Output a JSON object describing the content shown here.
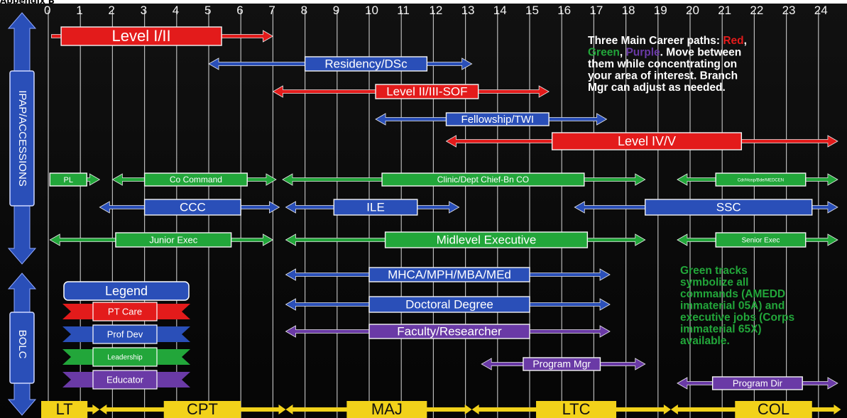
{
  "top_title": "Appendix B",
  "colors": {
    "red": "#e31b1b",
    "blue": "#2a4fb8",
    "green": "#22a63a",
    "purple": "#6a3aa6",
    "yellow": "#f2d21a",
    "white": "#ffffff",
    "black": "#000000"
  },
  "years": [
    "0",
    "1",
    "2",
    "3",
    "4",
    "5",
    "6",
    "7",
    "8",
    "9",
    "10",
    "11",
    "12",
    "13",
    "14",
    "15",
    "16",
    "17",
    "18",
    "19",
    "20",
    "21",
    "22",
    "23",
    "24"
  ],
  "side_labels": {
    "upper": "IPAP/ACCESSIONS",
    "lower": "BOLC"
  },
  "tracks": [
    {
      "id": "level-1-2",
      "label": "Level I/II",
      "color": "red",
      "start": 0.1,
      "end": 7.0,
      "label_start": 0.4,
      "label_end": 5.4,
      "two_way": false
    },
    {
      "id": "residency-dsc",
      "label": "Residency/DSc",
      "color": "blue",
      "start": 5.0,
      "end": 13.2,
      "label_start": 8.0,
      "label_end": 11.8,
      "two_way": true
    },
    {
      "id": "level-2-3-sof",
      "label": "Level II/III-SOF",
      "color": "red",
      "start": 7.0,
      "end": 15.6,
      "label_start": 10.2,
      "label_end": 13.4,
      "two_way": true
    },
    {
      "id": "fellowship-twi",
      "label": "Fellowship/TWI",
      "color": "blue",
      "start": 10.2,
      "end": 17.4,
      "label_start": 12.4,
      "label_end": 15.6,
      "two_way": true
    },
    {
      "id": "level-4-5",
      "label": "Level IV/V",
      "color": "red",
      "start": 12.4,
      "end": 24.6,
      "label_start": 15.7,
      "label_end": 21.6,
      "two_way": true
    },
    {
      "id": "pl",
      "label": "PL",
      "color": "green",
      "start": 0.05,
      "end": 1.6,
      "label_start": 0.05,
      "label_end": 1.2,
      "two_way": false
    },
    {
      "id": "co-command",
      "label": "Co Command",
      "color": "green",
      "start": 2.0,
      "end": 7.1,
      "label_start": 3.0,
      "label_end": 6.2,
      "two_way": true
    },
    {
      "id": "clinic-dept-chief",
      "label": "Clinic/Dept Chief-Bn CO",
      "color": "green",
      "start": 7.3,
      "end": 18.6,
      "label_start": 10.4,
      "label_end": 16.7,
      "two_way": true
    },
    {
      "id": "cdr-senior",
      "label": "Cdr/Hosp/Bde/MEDCEN",
      "color": "green",
      "start": 19.6,
      "end": 24.6,
      "label_start": 20.8,
      "label_end": 23.6,
      "two_way": true
    },
    {
      "id": "ccc",
      "label": "CCC",
      "color": "blue",
      "start": 1.6,
      "end": 7.2,
      "label_start": 3.0,
      "label_end": 6.0,
      "two_way": true
    },
    {
      "id": "ile",
      "label": "ILE",
      "color": "blue",
      "start": 7.4,
      "end": 12.8,
      "label_start": 8.9,
      "label_end": 11.5,
      "two_way": true
    },
    {
      "id": "ssc",
      "label": "SSC",
      "color": "blue",
      "start": 16.4,
      "end": 24.6,
      "label_start": 18.6,
      "label_end": 23.8,
      "two_way": true
    },
    {
      "id": "junior-exec",
      "label": "Junior Exec",
      "color": "green",
      "start": 0.05,
      "end": 7.0,
      "label_start": 2.1,
      "label_end": 5.7,
      "two_way": true
    },
    {
      "id": "midlevel-exec",
      "label": "Midlevel Executive",
      "color": "green",
      "start": 7.4,
      "end": 18.6,
      "label_start": 10.5,
      "label_end": 16.8,
      "two_way": true
    },
    {
      "id": "senior-exec",
      "label": "Senior Exec",
      "color": "green",
      "start": 19.6,
      "end": 24.6,
      "label_start": 20.8,
      "label_end": 23.6,
      "two_way": true
    },
    {
      "id": "mhca",
      "label": "MHCA/MPH/MBA/MEd",
      "color": "blue",
      "start": 7.4,
      "end": 17.5,
      "label_start": 10.0,
      "label_end": 15.0,
      "two_way": true
    },
    {
      "id": "doctoral",
      "label": "Doctoral Degree",
      "color": "blue",
      "start": 7.4,
      "end": 17.5,
      "label_start": 10.0,
      "label_end": 15.0,
      "two_way": true
    },
    {
      "id": "faculty",
      "label": "Faculty/Researcher",
      "color": "purple",
      "start": 7.4,
      "end": 17.5,
      "label_start": 10.0,
      "label_end": 15.0,
      "two_way": true
    },
    {
      "id": "program-mgr",
      "label": "Program Mgr",
      "color": "purple",
      "start": 13.5,
      "end": 18.6,
      "label_start": 14.8,
      "label_end": 17.2,
      "two_way": true
    },
    {
      "id": "program-dir",
      "label": "Program Dir",
      "color": "purple",
      "start": 19.6,
      "end": 24.6,
      "label_start": 20.7,
      "label_end": 23.5,
      "two_way": true
    }
  ],
  "ranks": [
    {
      "label": "LT",
      "start": 0.0,
      "end": 1.6,
      "label_start": 0.0,
      "label_end": 1.0
    },
    {
      "label": "CPT",
      "start": 1.6,
      "end": 7.4,
      "label_start": 3.6,
      "label_end": 6.0
    },
    {
      "label": "MAJ",
      "start": 7.4,
      "end": 13.2,
      "label_start": 9.3,
      "label_end": 11.8
    },
    {
      "label": "LTC",
      "start": 13.2,
      "end": 19.4,
      "label_start": 15.2,
      "label_end": 17.7
    },
    {
      "label": "COL",
      "start": 19.4,
      "end": 24.7,
      "label_start": 21.4,
      "label_end": 23.8
    }
  ],
  "note_top": {
    "lines": [
      [
        {
          "t": "Three Main Career paths: ",
          "c": "white"
        },
        {
          "t": "Red",
          "c": "red"
        },
        {
          "t": ",",
          "c": "white"
        }
      ],
      [
        {
          "t": "Green",
          "c": "green"
        },
        {
          "t": ", ",
          "c": "white"
        },
        {
          "t": "Purple",
          "c": "purple"
        },
        {
          "t": ".  Move between",
          "c": "white"
        }
      ],
      [
        {
          "t": "them while concentrating on",
          "c": "white"
        }
      ],
      [
        {
          "t": "your area of interest. Branch",
          "c": "white"
        }
      ],
      [
        {
          "t": "Mgr can adjust as needed.",
          "c": "white"
        }
      ]
    ]
  },
  "note_green": {
    "lines": [
      "Green tracks",
      "symbolize all",
      "commands (AMEDD",
      "immaterial 05A) and",
      "executive jobs (Corps",
      "immaterial 65X)",
      "available."
    ]
  },
  "legend": {
    "title": "Legend",
    "items": [
      {
        "label": "PT Care",
        "color": "red"
      },
      {
        "label": "Prof Dev",
        "color": "blue"
      },
      {
        "label": "Leadership",
        "color": "green"
      },
      {
        "label": "Educator",
        "color": "purple"
      }
    ]
  }
}
